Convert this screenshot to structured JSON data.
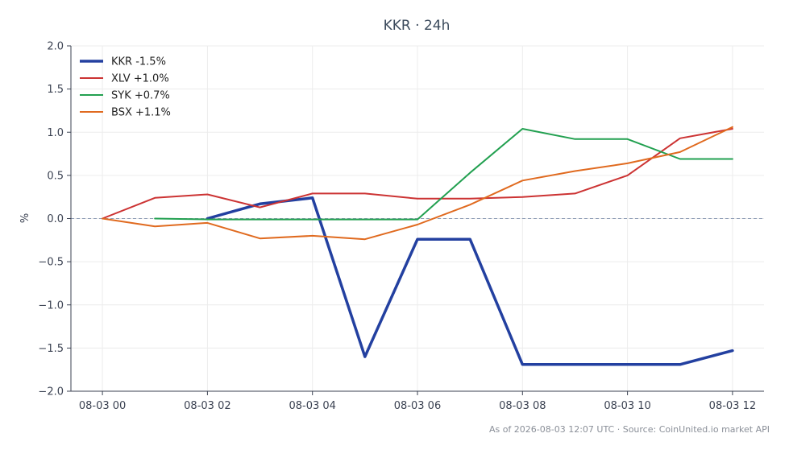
{
  "chart_data": {
    "type": "line",
    "title": "KKR · 24h",
    "ylabel": "%",
    "ylim": [
      -2.0,
      2.0
    ],
    "yticks": [
      -2.0,
      -1.5,
      -1.0,
      -0.5,
      0.0,
      0.5,
      1.0,
      1.5,
      2.0
    ],
    "ytick_labels": [
      "−2.0",
      "−1.5",
      "−1.0",
      "−0.5",
      "0.0",
      "0.5",
      "1.0",
      "1.5",
      "2.0"
    ],
    "xlim": [
      -0.6,
      12.6
    ],
    "xticks": [
      0,
      2,
      4,
      6,
      8,
      10,
      12
    ],
    "xtick_labels": [
      "08-03 00",
      "08-03 02",
      "08-03 04",
      "08-03 06",
      "08-03 08",
      "08-03 10",
      "08-03 12"
    ],
    "grid": true,
    "zero_line": true,
    "legend": "top-left",
    "series": [
      {
        "name": "KKR -1.5%",
        "color": "#2340a0",
        "width": 3.5,
        "x": [
          2,
          3,
          4,
          5,
          6,
          7,
          8,
          9,
          10,
          11,
          12
        ],
        "y": [
          0.0,
          0.17,
          0.24,
          -1.6,
          -0.24,
          -0.24,
          -1.69,
          -1.69,
          -1.69,
          -1.69,
          -1.53
        ]
      },
      {
        "name": "XLV +1.0%",
        "color": "#cc3333",
        "width": 2,
        "x": [
          0,
          1,
          2,
          3,
          4,
          5,
          6,
          7,
          8,
          9,
          10,
          11,
          12
        ],
        "y": [
          0.0,
          0.24,
          0.28,
          0.13,
          0.29,
          0.29,
          0.23,
          0.23,
          0.25,
          0.29,
          0.5,
          0.93,
          1.04
        ]
      },
      {
        "name": "SYK +0.7%",
        "color": "#22a050",
        "width": 2,
        "x": [
          1,
          2,
          3,
          4,
          5,
          6,
          7,
          8,
          9,
          10,
          11,
          12
        ],
        "y": [
          0.0,
          -0.01,
          -0.01,
          -0.01,
          -0.01,
          -0.01,
          0.53,
          1.04,
          0.92,
          0.92,
          0.69,
          0.69
        ]
      },
      {
        "name": "BSX +1.1%",
        "color": "#e06a1f",
        "width": 2,
        "x": [
          0,
          1,
          2,
          3,
          4,
          5,
          6,
          7,
          8,
          9,
          10,
          11,
          12
        ],
        "y": [
          0.0,
          -0.09,
          -0.05,
          -0.23,
          -0.2,
          -0.24,
          -0.07,
          0.16,
          0.44,
          0.55,
          0.64,
          0.77,
          1.06
        ]
      }
    ]
  },
  "footer": "As of 2026-08-03 12:07 UTC · Source: CoinUnited.io market API"
}
